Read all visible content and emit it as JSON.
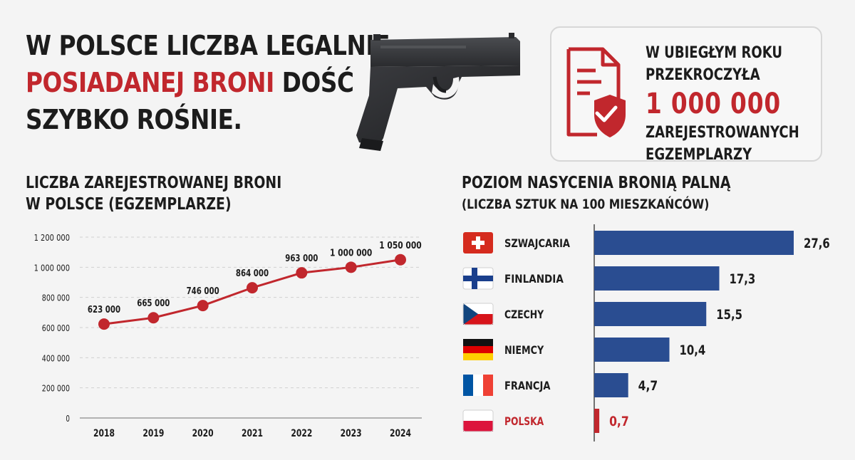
{
  "headline": {
    "part1": "W POLSCE LICZBA LEGALNIE",
    "highlight": "POSIADANEJ BRONI",
    "part2": " DOŚĆ",
    "part3": "SZYBKO ROŚNIE."
  },
  "stat": {
    "line1": "W UBIEGŁYM ROKU",
    "line2": "PRZEKROCZYŁA",
    "number": "1 000 000",
    "line3": "ZAREJESTROWANYCH",
    "line4": "EGZEMPLARZY"
  },
  "colors": {
    "accent": "#c1272d",
    "bar": "#2a4d91",
    "text": "#1c1c1c",
    "grid": "#cfcfcf"
  },
  "icons": {
    "gun": "pistol-icon",
    "document": "document-shield-check-icon"
  },
  "chart_data": [
    {
      "type": "line",
      "title_line1": "LICZBA ZAREJESTROWANEJ BRONI",
      "title_line2": "W POLSCE (EGZEMPLARZE)",
      "x": [
        "2018",
        "2019",
        "2020",
        "2021",
        "2022",
        "2023",
        "2024"
      ],
      "values": [
        623000,
        665000,
        746000,
        864000,
        963000,
        1000000,
        1050000
      ],
      "labels": [
        "623 000",
        "665 000",
        "746 000",
        "864 000",
        "963 000",
        "1 000 000",
        "1 050 000"
      ],
      "ylim": [
        0,
        1200000
      ],
      "yticks": [
        0,
        200000,
        400000,
        600000,
        800000,
        1000000,
        1200000
      ],
      "ytick_labels": [
        "0",
        "200 000",
        "400 000",
        "600 000",
        "800 000",
        "1 000 000",
        "1 200 000"
      ],
      "grid": true
    },
    {
      "type": "bar",
      "orientation": "horizontal",
      "title": "POZIOM NASYCENIA BRONIĄ PALNĄ",
      "subtitle": "(LICZBA SZTUK NA 100 MIESZKAŃCÓW)",
      "categories": [
        "SZWAJCARIA",
        "FINLANDIA",
        "CZECHY",
        "NIEMCY",
        "FRANCJA",
        "POLSKA"
      ],
      "flags": [
        "flag-switzerland-icon",
        "flag-finland-icon",
        "flag-czechia-icon",
        "flag-germany-icon",
        "flag-france-icon",
        "flag-poland-icon"
      ],
      "values": [
        27.6,
        17.3,
        15.5,
        10.4,
        4.7,
        0.7
      ],
      "labels": [
        "27,6",
        "17,3",
        "15,5",
        "10,4",
        "4,7",
        "0,7"
      ],
      "highlighted": "POLSKA"
    }
  ]
}
